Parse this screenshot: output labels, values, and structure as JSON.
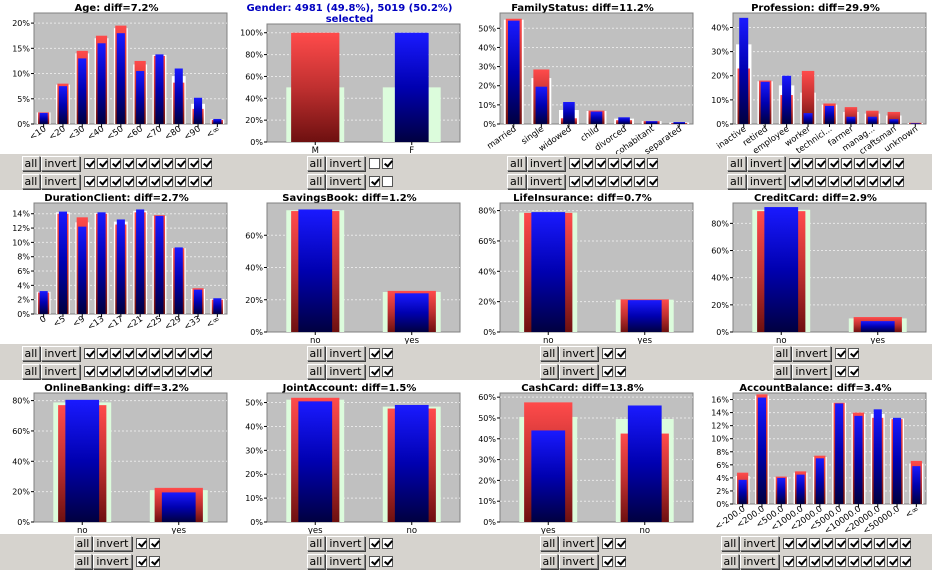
{
  "colors": {
    "red_gradient": [
      "#ff4b4b",
      "#c03030",
      "#6e1010"
    ],
    "blue_gradient": [
      "#1a1aff",
      "#0000b0",
      "#000040"
    ],
    "white_bar": "#ffffff",
    "green_bar": "#dcfcdc",
    "plot_bg": "#c0c0c0",
    "title_color": "#000000",
    "selected_title_color": "#0000c0"
  },
  "labels": {
    "all": "all",
    "invert": "invert"
  },
  "chart_data": [
    {
      "type": "bar",
      "title": "Age: diff=7.2%",
      "categories": [
        "<10",
        "<20",
        "<30",
        "<40",
        "<50",
        "<60",
        "<70",
        "<80",
        "<90",
        "<∞"
      ],
      "ymax": 0.22,
      "yticks": [
        0,
        0.05,
        0.1,
        0.15,
        0.2
      ],
      "ytick_labels": [
        "0%",
        "5%",
        "10%",
        "15%",
        "20%"
      ],
      "xlabel_rotated": true,
      "background_color": "white",
      "series": [
        {
          "name": "selected-red",
          "values": [
            0.023,
            0.08,
            0.145,
            0.175,
            0.195,
            0.125,
            0.135,
            0.082,
            0.03,
            0.008
          ]
        },
        {
          "name": "selected-blue",
          "values": [
            0.022,
            0.075,
            0.13,
            0.16,
            0.18,
            0.105,
            0.138,
            0.11,
            0.052,
            0.01
          ]
        },
        {
          "name": "background",
          "values": [
            0.023,
            0.078,
            0.14,
            0.17,
            0.19,
            0.118,
            0.137,
            0.095,
            0.04,
            0.009
          ]
        }
      ],
      "checkbox_rows": [
        [
          true,
          true,
          true,
          true,
          true,
          true,
          true,
          true,
          true,
          true
        ],
        [
          true,
          true,
          true,
          true,
          true,
          true,
          true,
          true,
          true,
          true
        ]
      ]
    },
    {
      "type": "bar",
      "title": "Gender: 4981 (49.8%), 5019 (50.2%)",
      "subtitle": "selected",
      "selected": true,
      "categories": [
        "M",
        "F"
      ],
      "ymax": 1.08,
      "yticks": [
        0,
        0.2,
        0.4,
        0.6,
        0.8,
        1.0
      ],
      "ytick_labels": [
        "0%",
        "20%",
        "40%",
        "60%",
        "80%",
        "100%"
      ],
      "xlabel_rotated": false,
      "background_color": "green",
      "series": [
        {
          "name": "selected-red",
          "values": [
            1.0,
            0.0
          ]
        },
        {
          "name": "selected-blue",
          "values": [
            0.0,
            1.0
          ]
        },
        {
          "name": "background",
          "values": [
            0.5,
            0.5
          ]
        }
      ],
      "checkbox_rows": [
        [
          false,
          true
        ],
        [
          true,
          false
        ]
      ]
    },
    {
      "type": "bar",
      "title": "FamilyStatus: diff=11.2%",
      "categories": [
        "married",
        "single",
        "widowed",
        "child",
        "divorced",
        "cohabitant",
        "separated"
      ],
      "ymax": 0.58,
      "yticks": [
        0,
        0.1,
        0.2,
        0.3,
        0.4,
        0.5
      ],
      "ytick_labels": [
        "0%",
        "10%",
        "20%",
        "30%",
        "40%",
        "50%"
      ],
      "xlabel_rotated": true,
      "background_color": "white",
      "series": [
        {
          "name": "selected-red",
          "values": [
            0.55,
            0.285,
            0.03,
            0.07,
            0.02,
            0.015,
            0.005
          ]
        },
        {
          "name": "selected-blue",
          "values": [
            0.54,
            0.195,
            0.115,
            0.065,
            0.035,
            0.015,
            0.01
          ]
        },
        {
          "name": "background",
          "values": [
            0.545,
            0.24,
            0.073,
            0.068,
            0.028,
            0.015,
            0.008
          ]
        }
      ],
      "checkbox_rows": [
        [
          true,
          true,
          true,
          true,
          true,
          true,
          true
        ],
        [
          true,
          true,
          true,
          true,
          true,
          true,
          true
        ]
      ]
    },
    {
      "type": "bar",
      "title": "Profession: diff=29.9%",
      "categories": [
        "inactive",
        "retired",
        "employee",
        "worker",
        "technici...",
        "farmer",
        "manag...",
        "craftsman",
        "unknown"
      ],
      "ymax": 0.46,
      "yticks": [
        0,
        0.1,
        0.2,
        0.3,
        0.4
      ],
      "ytick_labels": [
        "0%",
        "10%",
        "20%",
        "30%",
        "40%"
      ],
      "xlabel_rotated": true,
      "background_color": "white",
      "series": [
        {
          "name": "selected-red",
          "values": [
            0.23,
            0.18,
            0.12,
            0.22,
            0.085,
            0.07,
            0.055,
            0.05,
            0.005
          ]
        },
        {
          "name": "selected-blue",
          "values": [
            0.44,
            0.175,
            0.2,
            0.045,
            0.075,
            0.03,
            0.03,
            0.02,
            0.003
          ]
        },
        {
          "name": "background",
          "values": [
            0.33,
            0.177,
            0.16,
            0.13,
            0.08,
            0.05,
            0.043,
            0.035,
            0.004
          ]
        }
      ],
      "checkbox_rows": [
        [
          true,
          true,
          true,
          true,
          true,
          true,
          true,
          true,
          true
        ],
        [
          true,
          true,
          true,
          true,
          true,
          true,
          true,
          true,
          true
        ]
      ]
    },
    {
      "type": "bar",
      "title": "DurationClient: diff=2.7%",
      "categories": [
        "0",
        "<5",
        "<9",
        "<13",
        "<17",
        "<21",
        "<25",
        "<29",
        "<33",
        "<∞"
      ],
      "ymax": 0.155,
      "yticks": [
        0,
        0.02,
        0.04,
        0.06,
        0.08,
        0.1,
        0.12,
        0.14
      ],
      "ytick_labels": [
        "0%",
        "2%",
        "4%",
        "6%",
        "8%",
        "10%",
        "12%",
        "14%"
      ],
      "xlabel_rotated": true,
      "background_color": "white",
      "series": [
        {
          "name": "selected-red",
          "values": [
            0.03,
            0.14,
            0.135,
            0.14,
            0.125,
            0.142,
            0.138,
            0.092,
            0.036,
            0.02
          ]
        },
        {
          "name": "selected-blue",
          "values": [
            0.032,
            0.143,
            0.122,
            0.142,
            0.132,
            0.146,
            0.137,
            0.093,
            0.034,
            0.022
          ]
        },
        {
          "name": "background",
          "values": [
            0.031,
            0.142,
            0.128,
            0.141,
            0.129,
            0.144,
            0.137,
            0.092,
            0.035,
            0.021
          ]
        }
      ],
      "checkbox_rows": [
        [
          true,
          true,
          true,
          true,
          true,
          true,
          true,
          true,
          true,
          true
        ],
        [
          true,
          true,
          true,
          true,
          true,
          true,
          true,
          true,
          true,
          true
        ]
      ]
    },
    {
      "type": "bar",
      "title": "SavingsBook: diff=1.2%",
      "categories": [
        "no",
        "yes"
      ],
      "ymax": 0.8,
      "yticks": [
        0,
        0.2,
        0.4,
        0.6
      ],
      "ytick_labels": [
        "0%",
        "20%",
        "40%",
        "60%"
      ],
      "xlabel_rotated": false,
      "background_color": "green",
      "series": [
        {
          "name": "selected-red",
          "values": [
            0.75,
            0.255
          ]
        },
        {
          "name": "selected-blue",
          "values": [
            0.76,
            0.24
          ]
        },
        {
          "name": "background",
          "values": [
            0.755,
            0.248
          ]
        }
      ],
      "checkbox_rows": [
        [
          true,
          true
        ],
        [
          true,
          true
        ]
      ]
    },
    {
      "type": "bar",
      "title": "LifeInsurance: diff=0.7%",
      "categories": [
        "no",
        "yes"
      ],
      "ymax": 0.85,
      "yticks": [
        0,
        0.2,
        0.4,
        0.6,
        0.8
      ],
      "ytick_labels": [
        "0%",
        "20%",
        "40%",
        "60%",
        "80%"
      ],
      "xlabel_rotated": false,
      "background_color": "green",
      "series": [
        {
          "name": "selected-red",
          "values": [
            0.785,
            0.215
          ]
        },
        {
          "name": "selected-blue",
          "values": [
            0.79,
            0.21
          ]
        },
        {
          "name": "background",
          "values": [
            0.787,
            0.213
          ]
        }
      ],
      "checkbox_rows": [
        [
          true,
          true
        ],
        [
          true,
          true
        ]
      ]
    },
    {
      "type": "bar",
      "title": "CreditCard: diff=2.9%",
      "categories": [
        "no",
        "yes"
      ],
      "ymax": 0.95,
      "yticks": [
        0,
        0.2,
        0.4,
        0.6,
        0.8
      ],
      "ytick_labels": [
        "0%",
        "20%",
        "40%",
        "60%",
        "80%"
      ],
      "xlabel_rotated": false,
      "background_color": "green",
      "series": [
        {
          "name": "selected-red",
          "values": [
            0.89,
            0.11
          ]
        },
        {
          "name": "selected-blue",
          "values": [
            0.92,
            0.08
          ]
        },
        {
          "name": "background",
          "values": [
            0.9,
            0.1
          ]
        }
      ],
      "checkbox_rows": [
        [
          true,
          true
        ],
        [
          true,
          true
        ]
      ]
    },
    {
      "type": "bar",
      "title": "OnlineBanking: diff=3.2%",
      "categories": [
        "no",
        "yes"
      ],
      "ymax": 0.85,
      "yticks": [
        0,
        0.2,
        0.4,
        0.6,
        0.8
      ],
      "ytick_labels": [
        "0%",
        "20%",
        "40%",
        "60%",
        "80%"
      ],
      "xlabel_rotated": false,
      "background_color": "green",
      "series": [
        {
          "name": "selected-red",
          "values": [
            0.77,
            0.225
          ]
        },
        {
          "name": "selected-blue",
          "values": [
            0.805,
            0.195
          ]
        },
        {
          "name": "background",
          "values": [
            0.788,
            0.21
          ]
        }
      ],
      "checkbox_rows": [
        [
          true,
          true
        ],
        [
          true,
          true
        ]
      ]
    },
    {
      "type": "bar",
      "title": "JointAccount: diff=1.5%",
      "categories": [
        "yes",
        "no"
      ],
      "ymax": 0.54,
      "yticks": [
        0,
        0.1,
        0.2,
        0.3,
        0.4,
        0.5
      ],
      "ytick_labels": [
        "0%",
        "10%",
        "20%",
        "30%",
        "40%",
        "50%"
      ],
      "xlabel_rotated": false,
      "background_color": "green",
      "series": [
        {
          "name": "selected-red",
          "values": [
            0.52,
            0.475
          ]
        },
        {
          "name": "selected-blue",
          "values": [
            0.505,
            0.49
          ]
        },
        {
          "name": "background",
          "values": [
            0.512,
            0.483
          ]
        }
      ],
      "checkbox_rows": [
        [
          true,
          true
        ],
        [
          true,
          true
        ]
      ]
    },
    {
      "type": "bar",
      "title": "CashCard: diff=13.8%",
      "categories": [
        "yes",
        "no"
      ],
      "ymax": 0.62,
      "yticks": [
        0,
        0.1,
        0.2,
        0.3,
        0.4,
        0.5,
        0.6
      ],
      "ytick_labels": [
        "0%",
        "10%",
        "20%",
        "30%",
        "40%",
        "50%",
        "60%"
      ],
      "xlabel_rotated": false,
      "background_color": "green",
      "series": [
        {
          "name": "selected-red",
          "values": [
            0.575,
            0.425
          ]
        },
        {
          "name": "selected-blue",
          "values": [
            0.44,
            0.56
          ]
        },
        {
          "name": "background",
          "values": [
            0.505,
            0.495
          ]
        }
      ],
      "checkbox_rows": [
        [
          true,
          true
        ],
        [
          true,
          true
        ]
      ]
    },
    {
      "type": "bar",
      "title": "AccountBalance: diff=3.4%",
      "categories": [
        "<-200.0",
        "<200.0",
        "<500.0",
        "<1000.0",
        "<2000.0",
        "<5000.0",
        "<10000.0",
        "<20000.0",
        "<50000.0",
        "<∞"
      ],
      "ymax": 0.17,
      "yticks": [
        0,
        0.02,
        0.04,
        0.06,
        0.08,
        0.1,
        0.12,
        0.14,
        0.16
      ],
      "ytick_labels": [
        "0%",
        "2%",
        "4%",
        "6%",
        "8%",
        "10%",
        "12%",
        "14%",
        "16%"
      ],
      "xlabel_rotated": true,
      "background_color": "white",
      "series": [
        {
          "name": "selected-red",
          "values": [
            0.048,
            0.168,
            0.042,
            0.05,
            0.074,
            0.155,
            0.14,
            0.132,
            0.13,
            0.066
          ]
        },
        {
          "name": "selected-blue",
          "values": [
            0.037,
            0.163,
            0.04,
            0.045,
            0.07,
            0.154,
            0.135,
            0.145,
            0.132,
            0.058
          ]
        },
        {
          "name": "background",
          "values": [
            0.043,
            0.166,
            0.041,
            0.048,
            0.072,
            0.155,
            0.138,
            0.138,
            0.131,
            0.062
          ]
        }
      ],
      "checkbox_rows": [
        [
          true,
          true,
          true,
          true,
          true,
          true,
          true,
          true,
          true,
          true
        ],
        [
          true,
          true,
          true,
          true,
          true,
          true,
          true,
          true,
          true,
          true
        ]
      ]
    }
  ]
}
